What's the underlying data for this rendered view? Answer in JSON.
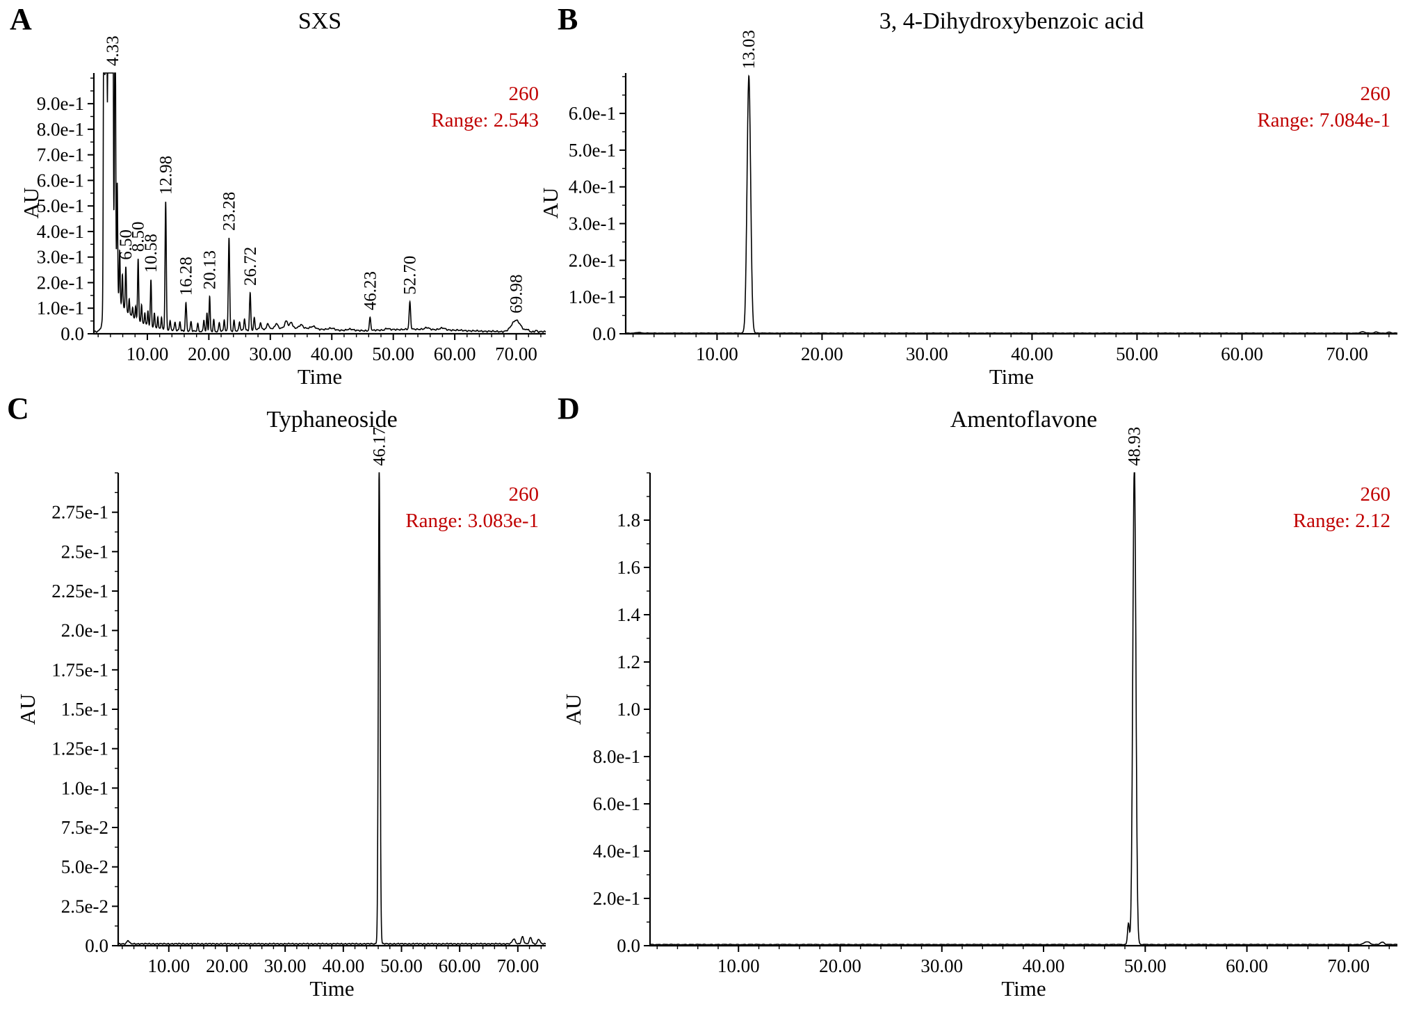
{
  "figure": {
    "description_colors": {
      "annotation_red": "#c00000",
      "trace_black": "#000000"
    }
  },
  "chart_data": [
    {
      "type": "line",
      "panel": "A",
      "title": "SXS",
      "wavelength_label": "260",
      "range_label": "Range: 2.543",
      "xlabel": "Time",
      "ylabel": "AU",
      "xlim": [
        1.3,
        74.8
      ],
      "ylim": [
        0,
        1.02
      ],
      "x_minor_step": 2,
      "y_minor_step": 0.05,
      "x_ticks": [
        {
          "value": 10,
          "label": "10.00"
        },
        {
          "value": 20,
          "label": "20.00"
        },
        {
          "value": 30,
          "label": "30.00"
        },
        {
          "value": 40,
          "label": "40.00"
        },
        {
          "value": 50,
          "label": "50.00"
        },
        {
          "value": 60,
          "label": "60.00"
        },
        {
          "value": 70,
          "label": "70.00"
        }
      ],
      "y_ticks": [
        {
          "value": 0,
          "label": "0.0"
        },
        {
          "value": 0.1,
          "label": "1.0e-1"
        },
        {
          "value": 0.2,
          "label": "2.0e-1"
        },
        {
          "value": 0.3,
          "label": "3.0e-1"
        },
        {
          "value": 0.4,
          "label": "4.0e-1"
        },
        {
          "value": 0.5,
          "label": "5.0e-1"
        },
        {
          "value": 0.6,
          "label": "6.0e-1"
        },
        {
          "value": 0.7,
          "label": "7.0e-1"
        },
        {
          "value": 0.8,
          "label": "8.0e-1"
        },
        {
          "value": 0.9,
          "label": "9.0e-1"
        }
      ],
      "peak_labels": [
        {
          "time": 4.33,
          "label": "4.33"
        },
        {
          "time": 6.5,
          "label": "6.50"
        },
        {
          "time": 8.5,
          "label": "8.50"
        },
        {
          "time": 10.58,
          "label": "10.58"
        },
        {
          "time": 12.98,
          "label": "12.98"
        },
        {
          "time": 16.28,
          "label": "16.28"
        },
        {
          "time": 20.13,
          "label": "20.13"
        },
        {
          "time": 23.28,
          "label": "23.28"
        },
        {
          "time": 26.72,
          "label": "26.72"
        },
        {
          "time": 46.23,
          "label": "46.23"
        },
        {
          "time": 52.7,
          "label": "52.70"
        },
        {
          "time": 69.98,
          "label": "69.98"
        }
      ],
      "peaks_format": "[time_min, height_au, sigma_min]",
      "peaks": [
        [
          2.95,
          1.6,
          0.09
        ],
        [
          3.3,
          2.54,
          0.1
        ],
        [
          3.7,
          2.4,
          0.1
        ],
        [
          4.0,
          2.3,
          0.09
        ],
        [
          4.33,
          2.5,
          0.1
        ],
        [
          4.75,
          1.3,
          0.09
        ],
        [
          5.1,
          0.45,
          0.08
        ],
        [
          5.5,
          0.2,
          0.08
        ],
        [
          5.95,
          0.12,
          0.08
        ],
        [
          6.5,
          0.17,
          0.09
        ],
        [
          7.05,
          0.06,
          0.08
        ],
        [
          7.6,
          0.04,
          0.08
        ],
        [
          8.1,
          0.05,
          0.08
        ],
        [
          8.5,
          0.24,
          0.09
        ],
        [
          9.05,
          0.07,
          0.08
        ],
        [
          9.6,
          0.045,
          0.08
        ],
        [
          10.1,
          0.06,
          0.08
        ],
        [
          10.58,
          0.18,
          0.09
        ],
        [
          11.15,
          0.055,
          0.08
        ],
        [
          11.7,
          0.04,
          0.08
        ],
        [
          12.3,
          0.045,
          0.08
        ],
        [
          12.98,
          0.5,
          0.1
        ],
        [
          13.7,
          0.035,
          0.09
        ],
        [
          14.5,
          0.03,
          0.1
        ],
        [
          15.3,
          0.035,
          0.1
        ],
        [
          16.28,
          0.11,
          0.1
        ],
        [
          17.1,
          0.035,
          0.1
        ],
        [
          18.2,
          0.03,
          0.1
        ],
        [
          19.2,
          0.045,
          0.09
        ],
        [
          19.7,
          0.07,
          0.08
        ],
        [
          20.13,
          0.135,
          0.09
        ],
        [
          20.8,
          0.045,
          0.09
        ],
        [
          21.7,
          0.035,
          0.1
        ],
        [
          22.5,
          0.045,
          0.09
        ],
        [
          23.28,
          0.365,
          0.11
        ],
        [
          24.1,
          0.04,
          0.1
        ],
        [
          25.0,
          0.035,
          0.1
        ],
        [
          25.8,
          0.045,
          0.1
        ],
        [
          26.72,
          0.145,
          0.1
        ],
        [
          27.4,
          0.045,
          0.1
        ],
        [
          28.4,
          0.025,
          0.12
        ],
        [
          29.6,
          0.022,
          0.15
        ],
        [
          31.0,
          0.018,
          0.2
        ],
        [
          32.6,
          0.027,
          0.25
        ],
        [
          33.4,
          0.022,
          0.2
        ],
        [
          35.0,
          0.014,
          0.3
        ],
        [
          37.0,
          0.01,
          0.4
        ],
        [
          40.0,
          0.008,
          0.5
        ],
        [
          43.0,
          0.007,
          0.5
        ],
        [
          33.0,
          0.015,
          5.0
        ],
        [
          54.0,
          0.01,
          6.0
        ],
        [
          46.23,
          0.05,
          0.12
        ],
        [
          49.0,
          0.006,
          0.3
        ],
        [
          52.7,
          0.105,
          0.12
        ],
        [
          55.5,
          0.006,
          0.3
        ],
        [
          58.0,
          0.006,
          0.4
        ],
        [
          69.98,
          0.045,
          0.7
        ],
        [
          71.8,
          0.008,
          0.2
        ],
        [
          73.2,
          0.006,
          0.15
        ]
      ],
      "baseline": {
        "c": 0.008,
        "a": 0.26,
        "t0": 3.1,
        "tau": 3.0,
        "rise": 0.25
      },
      "noise_amp": 0.0035
    },
    {
      "type": "line",
      "panel": "B",
      "title": "3, 4-Dihydroxybenzoic acid",
      "wavelength_label": "260",
      "range_label": "Range: 7.084e-1",
      "xlabel": "Time",
      "ylabel": "AU",
      "xlim": [
        1.3,
        74.8
      ],
      "ylim": [
        0,
        0.71
      ],
      "x_minor_step": 2,
      "y_minor_step": 0.05,
      "x_ticks": [
        {
          "value": 10,
          "label": "10.00"
        },
        {
          "value": 20,
          "label": "20.00"
        },
        {
          "value": 30,
          "label": "30.00"
        },
        {
          "value": 40,
          "label": "40.00"
        },
        {
          "value": 50,
          "label": "50.00"
        },
        {
          "value": 60,
          "label": "60.00"
        },
        {
          "value": 70,
          "label": "70.00"
        }
      ],
      "y_ticks": [
        {
          "value": 0,
          "label": "0.0"
        },
        {
          "value": 0.1,
          "label": "1.0e-1"
        },
        {
          "value": 0.2,
          "label": "2.0e-1"
        },
        {
          "value": 0.3,
          "label": "3.0e-1"
        },
        {
          "value": 0.4,
          "label": "4.0e-1"
        },
        {
          "value": 0.5,
          "label": "5.0e-1"
        },
        {
          "value": 0.6,
          "label": "6.0e-1"
        }
      ],
      "peak_labels": [
        {
          "time": 13.03,
          "label": "13.03"
        }
      ],
      "peaks_format": "[time_min, height_au, sigma_min]",
      "peaks": [
        [
          13.03,
          0.7,
          0.17
        ],
        [
          2.5,
          0.002,
          0.2
        ],
        [
          71.5,
          0.0035,
          0.2
        ],
        [
          72.8,
          0.003,
          0.18
        ],
        [
          74.0,
          0.0025,
          0.15
        ]
      ],
      "baseline": {
        "c": 0.0018,
        "a": 0,
        "t0": 0,
        "tau": 1,
        "rise": 1
      },
      "noise_amp": 0.0006
    },
    {
      "type": "line",
      "panel": "C",
      "title": "Typhaneoside",
      "wavelength_label": "260",
      "range_label": "Range: 3.083e-1",
      "xlabel": "Time",
      "ylabel": "AU",
      "xlim": [
        1.3,
        74.8
      ],
      "ylim": [
        0,
        0.3
      ],
      "x_minor_step": 2,
      "y_minor_step": 0.0125,
      "x_ticks": [
        {
          "value": 10,
          "label": "10.00"
        },
        {
          "value": 20,
          "label": "20.00"
        },
        {
          "value": 30,
          "label": "30.00"
        },
        {
          "value": 40,
          "label": "40.00"
        },
        {
          "value": 50,
          "label": "50.00"
        },
        {
          "value": 60,
          "label": "60.00"
        },
        {
          "value": 70,
          "label": "70.00"
        }
      ],
      "y_ticks": [
        {
          "value": 0,
          "label": "0.0"
        },
        {
          "value": 0.025,
          "label": "2.5e-2"
        },
        {
          "value": 0.05,
          "label": "5.0e-2"
        },
        {
          "value": 0.075,
          "label": "7.5e-2"
        },
        {
          "value": 0.1,
          "label": "1.0e-1"
        },
        {
          "value": 0.125,
          "label": "1.25e-1"
        },
        {
          "value": 0.15,
          "label": "1.5e-1"
        },
        {
          "value": 0.175,
          "label": "1.75e-1"
        },
        {
          "value": 0.2,
          "label": "2.0e-1"
        },
        {
          "value": 0.225,
          "label": "2.25e-1"
        },
        {
          "value": 0.25,
          "label": "2.5e-1"
        },
        {
          "value": 0.275,
          "label": "2.75e-1"
        }
      ],
      "peak_labels": [
        {
          "time": 46.17,
          "label": "46.17"
        }
      ],
      "peaks_format": "[time_min, height_au, sigma_min]",
      "peaks": [
        [
          46.17,
          0.302,
          0.15
        ],
        [
          3.0,
          0.002,
          0.2
        ],
        [
          69.3,
          0.003,
          0.25
        ],
        [
          70.8,
          0.0045,
          0.2
        ],
        [
          72.2,
          0.004,
          0.2
        ],
        [
          73.6,
          0.003,
          0.2
        ]
      ],
      "baseline": {
        "c": 0.0012,
        "a": 0,
        "t0": 0,
        "tau": 1,
        "rise": 1
      },
      "noise_amp": 0.0004
    },
    {
      "type": "line",
      "panel": "D",
      "title": "Amentoflavone",
      "wavelength_label": "260",
      "range_label": "Range: 2.12",
      "xlabel": "Time",
      "ylabel": "AU",
      "xlim": [
        1.3,
        74.8
      ],
      "ylim": [
        0,
        2.0
      ],
      "x_minor_step": 2,
      "y_minor_step": 0.1,
      "x_ticks": [
        {
          "value": 10,
          "label": "10.00"
        },
        {
          "value": 20,
          "label": "20.00"
        },
        {
          "value": 30,
          "label": "30.00"
        },
        {
          "value": 40,
          "label": "40.00"
        },
        {
          "value": 50,
          "label": "50.00"
        },
        {
          "value": 60,
          "label": "60.00"
        },
        {
          "value": 70,
          "label": "70.00"
        }
      ],
      "y_ticks": [
        {
          "value": 0,
          "label": "0.0"
        },
        {
          "value": 0.2,
          "label": "2.0e-1"
        },
        {
          "value": 0.4,
          "label": "4.0e-1"
        },
        {
          "value": 0.6,
          "label": "6.0e-1"
        },
        {
          "value": 0.8,
          "label": "8.0e-1"
        },
        {
          "value": 1.0,
          "label": "1.0"
        },
        {
          "value": 1.2,
          "label": "1.2"
        },
        {
          "value": 1.4,
          "label": "1.4"
        },
        {
          "value": 1.6,
          "label": "1.6"
        },
        {
          "value": 1.8,
          "label": "1.8"
        }
      ],
      "peak_labels": [
        {
          "time": 48.93,
          "label": "48.93"
        }
      ],
      "peaks_format": "[time_min, height_au, sigma_min]",
      "peaks": [
        [
          48.93,
          2.04,
          0.15
        ],
        [
          48.35,
          0.09,
          0.09
        ],
        [
          71.8,
          0.012,
          0.25
        ],
        [
          73.3,
          0.01,
          0.2
        ]
      ],
      "baseline": {
        "c": 0.005,
        "a": 0,
        "t0": 0,
        "tau": 1,
        "rise": 1
      },
      "noise_amp": 0.0015
    }
  ]
}
